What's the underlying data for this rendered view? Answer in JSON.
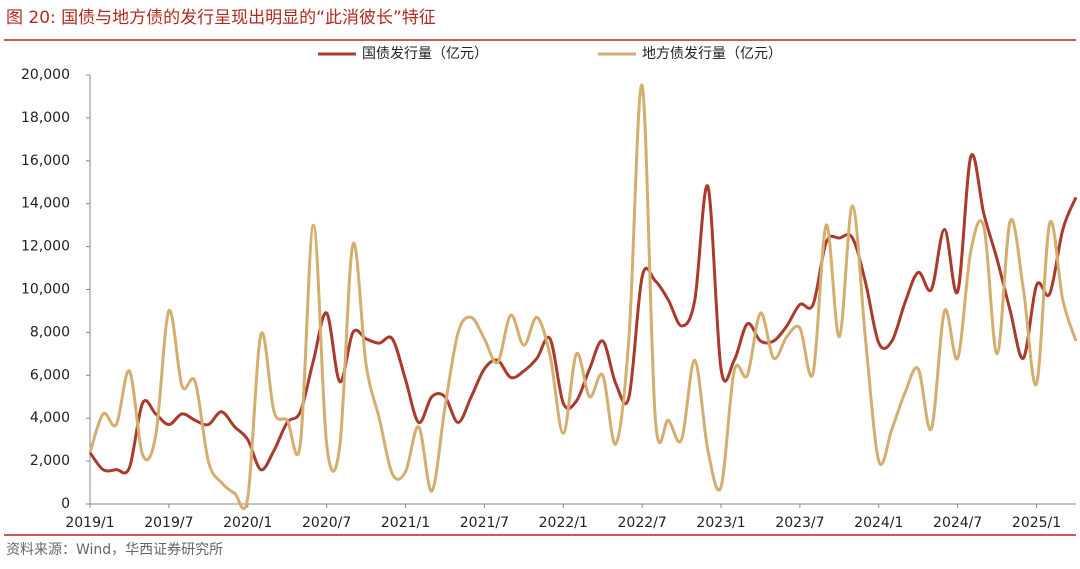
{
  "chart_data": {
    "type": "line",
    "title": "图 20:  国债与地方债的发行呈现出明显的“此消彼长”特征",
    "source": "资料来源：Wind，华西证券研究所",
    "categories": [
      "2019/1",
      null,
      null,
      null,
      null,
      null,
      "2019/7",
      null,
      null,
      null,
      null,
      null,
      "2020/1",
      null,
      null,
      null,
      null,
      null,
      "2020/7",
      null,
      null,
      null,
      null,
      null,
      "2021/1",
      null,
      null,
      null,
      null,
      null,
      "2021/7",
      null,
      null,
      null,
      null,
      null,
      "2022/1",
      null,
      null,
      null,
      null,
      null,
      "2022/7",
      null,
      null,
      null,
      null,
      null,
      "2023/1",
      null,
      null,
      null,
      null,
      null,
      "2023/7",
      null,
      null,
      null,
      null,
      null,
      "2024/1",
      null,
      null,
      null,
      null,
      null,
      "2024/7",
      null,
      null,
      null,
      null,
      null,
      "2025/1",
      null,
      null,
      null
    ],
    "series": [
      {
        "name": "国债发行量（亿元）",
        "color": "#a93a2c",
        "values": [
          2400,
          1600,
          1600,
          1700,
          4700,
          4200,
          3700,
          4200,
          3900,
          3700,
          4300,
          3600,
          3000,
          1600,
          2500,
          3800,
          4300,
          6700,
          8900,
          5700,
          8000,
          7700,
          7500,
          7700,
          5800,
          3800,
          5000,
          5000,
          3800,
          5000,
          6300,
          6700,
          5900,
          6200,
          6800,
          7700,
          4700,
          4800,
          6300,
          7600,
          5600,
          5000,
          10600,
          10400,
          9500,
          8300,
          9500,
          14800,
          6300,
          6700,
          8400,
          7600,
          7600,
          8300,
          9300,
          9300,
          12200,
          12400,
          12400,
          10300,
          7500,
          7600,
          9400,
          10800,
          10000,
          12800,
          9900,
          16200,
          13500,
          11400,
          9000,
          6800,
          10200,
          9800,
          12800,
          14300
        ]
      },
      {
        "name": "地方债发行量（亿元）",
        "color": "#d4ae6e",
        "values": [
          2400,
          4200,
          3700,
          6200,
          2300,
          3200,
          9000,
          5500,
          5700,
          2000,
          1000,
          500,
          300,
          7900,
          4300,
          3900,
          2800,
          13000,
          2800,
          2700,
          12100,
          6500,
          4000,
          1400,
          1500,
          3600,
          600,
          4500,
          8000,
          8700,
          7700,
          6600,
          8800,
          7400,
          8700,
          6900,
          3300,
          7000,
          5000,
          6000,
          2800,
          7800,
          19500,
          4000,
          3900,
          3000,
          6700,
          2500,
          800,
          6200,
          6000,
          8900,
          6800,
          7800,
          8200,
          6100,
          13000,
          7800,
          13900,
          7600,
          2000,
          3500,
          5200,
          6300,
          3500,
          9000,
          6800,
          11800,
          12900,
          7000,
          13200,
          10000,
          5600,
          13100,
          9500,
          7600
        ]
      }
    ],
    "ylim": [
      0,
      20000
    ],
    "yticks": [
      0,
      {
        "value": 2000,
        "label": "2,000"
      },
      {
        "value": 4000,
        "label": "4,000"
      },
      {
        "value": 6000,
        "label": "6,000"
      },
      {
        "value": 8000,
        "label": "8,000"
      },
      {
        "value": 10000,
        "label": "10,000"
      },
      {
        "value": 12000,
        "label": "12,000"
      },
      {
        "value": 14000,
        "label": "14,000"
      },
      {
        "value": 16000,
        "label": "16,000"
      },
      {
        "value": 18000,
        "label": "18,000"
      },
      {
        "value": 20000,
        "label": "20,000"
      }
    ],
    "grid": false
  }
}
